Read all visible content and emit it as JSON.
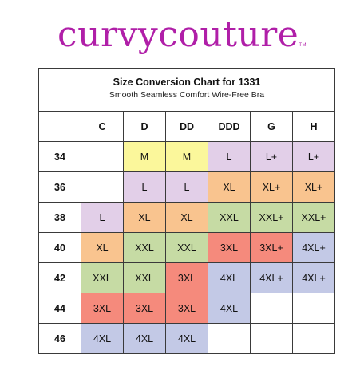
{
  "brand": {
    "name": "curvycouture",
    "tm": "TM"
  },
  "chart": {
    "title": "Size Conversion Chart for 1331",
    "subtitle": "Smooth Seamless Comfort Wire-Free Bra"
  },
  "columns": [
    "",
    "C",
    "D",
    "DD",
    "DDD",
    "G",
    "H"
  ],
  "rows": [
    {
      "band": "34",
      "cells": [
        "",
        "M",
        "M",
        "L",
        "L+",
        "L+"
      ]
    },
    {
      "band": "36",
      "cells": [
        "",
        "L",
        "L",
        "XL",
        "XL+",
        "XL+"
      ]
    },
    {
      "band": "38",
      "cells": [
        "L",
        "XL",
        "XL",
        "XXL",
        "XXL+",
        "XXL+"
      ]
    },
    {
      "band": "40",
      "cells": [
        "XL",
        "XXL",
        "XXL",
        "3XL",
        "3XL+",
        "4XL+"
      ]
    },
    {
      "band": "42",
      "cells": [
        "XXL",
        "XXL",
        "3XL",
        "4XL",
        "4XL+",
        "4XL+"
      ]
    },
    {
      "band": "44",
      "cells": [
        "3XL",
        "3XL",
        "3XL",
        "4XL",
        "",
        ""
      ]
    },
    {
      "band": "46",
      "cells": [
        "4XL",
        "4XL",
        "4XL",
        "",
        "",
        ""
      ]
    }
  ],
  "size_colors": {
    "M": "#fbf79b",
    "L": "#e2cfe8",
    "L+": "#e2cfe8",
    "XL": "#f9c48f",
    "XL+": "#f9c48f",
    "XXL": "#c6dba4",
    "XXL+": "#c6dba4",
    "3XL": "#f58a7c",
    "3XL+": "#f58a7c",
    "4XL": "#c3c9e6",
    "4XL+": "#c3c9e6"
  }
}
